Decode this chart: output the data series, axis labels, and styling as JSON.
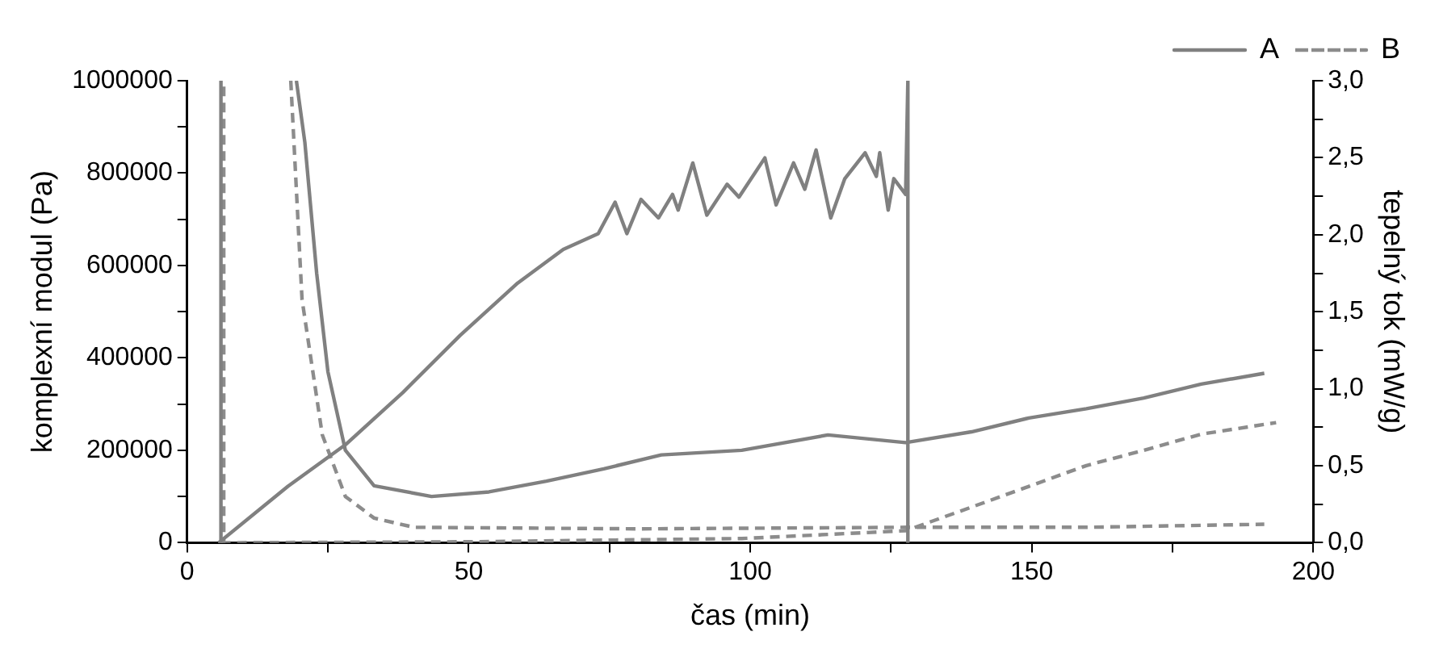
{
  "chart_data": {
    "type": "line",
    "xlabel": "čas (min)",
    "ylabel": "komplexní modul (Pa)",
    "y2label": "tepelný tok (mW/g)",
    "xlim": [
      0,
      200
    ],
    "xticks": [
      0,
      {
        "value": 25,
        "label": null
      },
      50,
      {
        "value": 75,
        "label": null
      },
      100,
      {
        "value": 125,
        "label": null
      },
      150,
      {
        "value": 175,
        "label": null
      },
      200
    ],
    "ylim": [
      0,
      1000000
    ],
    "yticks": [
      0,
      {
        "value": 100000,
        "label": null
      },
      200000,
      {
        "value": 300000,
        "label": null
      },
      400000,
      {
        "value": 500000,
        "label": null
      },
      600000,
      {
        "value": 700000,
        "label": null
      },
      800000,
      {
        "value": 900000,
        "label": null
      },
      1000000
    ],
    "y2lim": [
      0,
      3
    ],
    "y2ticks": [
      {
        "value": 0,
        "label": "0,0"
      },
      {
        "value": 0.25,
        "label": null
      },
      {
        "value": 0.5,
        "label": "0,5"
      },
      {
        "value": 0.75,
        "label": null
      },
      {
        "value": 1,
        "label": "1,0"
      },
      {
        "value": 1.25,
        "label": null
      },
      {
        "value": 1.5,
        "label": "1,5"
      },
      {
        "value": 1.75,
        "label": null
      },
      {
        "value": 2,
        "label": "2,0"
      },
      {
        "value": 2.25,
        "label": null
      },
      {
        "value": 2.5,
        "label": "2,5"
      },
      {
        "value": 2.75,
        "label": null
      },
      {
        "value": 3,
        "label": "3,0"
      }
    ],
    "grid": false,
    "legend": "top right",
    "marker": "none",
    "series": [
      {
        "name": "A",
        "color": "#808080",
        "line_style": "solid",
        "x": [
          5.6,
          17.9,
          28.1,
          38.3,
          48.5,
          58.7,
          66.8,
          73,
          76,
          78.1,
          80.6,
          83.7,
          86.2,
          87.2,
          89.8,
          92.3,
          95.9,
          98,
          102.6,
          104.6,
          107.7,
          109.7,
          111.7,
          114.3,
          116.8,
          120.4,
          122.4,
          123,
          124.5,
          125.5,
          127.6,
          128,
          128
        ],
        "values": [
          0,
          122000,
          212000,
          325000,
          449000,
          562000,
          635000,
          669000,
          737000,
          669000,
          743000,
          703000,
          754000,
          720000,
          822000,
          709000,
          776000,
          748000,
          833000,
          731000,
          822000,
          765000,
          850000,
          703000,
          788000,
          844000,
          793000,
          844000,
          720000,
          788000,
          754000,
          1000000,
          0
        ]
      },
      {
        "name": "B",
        "color": "#8c8c8c",
        "line_style": "dashed",
        "x": [
          6,
          50,
          98.5,
          127.6,
          139.3,
          149.5,
          159.7,
          169.9,
          180.1,
          193.4
        ],
        "values": [
          0,
          2000,
          9000,
          26000,
          77000,
          122000,
          167000,
          200000,
          235000,
          260000
        ]
      },
      {
        "color": "#808080",
        "line_style": "solid",
        "axis": "y2",
        "x": [
          5.5,
          6,
          6,
          13,
          19.4,
          20.9,
          23,
          25,
          28.1,
          33.2,
          43.4,
          53.6,
          63.8,
          74,
          84.2,
          98.5,
          113.8,
          127.6,
          139.3,
          149.5,
          159.7,
          169.9,
          180.1,
          191.3
        ],
        "values": [
          0,
          0,
          3,
          null,
          3,
          2.6,
          1.75,
          1.11,
          0.6,
          0.37,
          0.3,
          0.33,
          0.4,
          0.48,
          0.57,
          0.6,
          0.7,
          0.65,
          0.72,
          0.81,
          0.87,
          0.94,
          1.03,
          1.1
        ]
      },
      {
        "color": "#8c8c8c",
        "line_style": "dashed",
        "axis": "y2",
        "x": [
          5.5,
          6.5,
          6.5,
          12,
          18.4,
          20.4,
          24,
          28.1,
          33.2,
          40.3,
          80,
          128,
          159.7,
          191.3
        ],
        "values": [
          0,
          0,
          3,
          null,
          3,
          1.58,
          0.7,
          0.3,
          0.16,
          0.1,
          0.09,
          0.1,
          0.1,
          0.12
        ]
      }
    ]
  }
}
